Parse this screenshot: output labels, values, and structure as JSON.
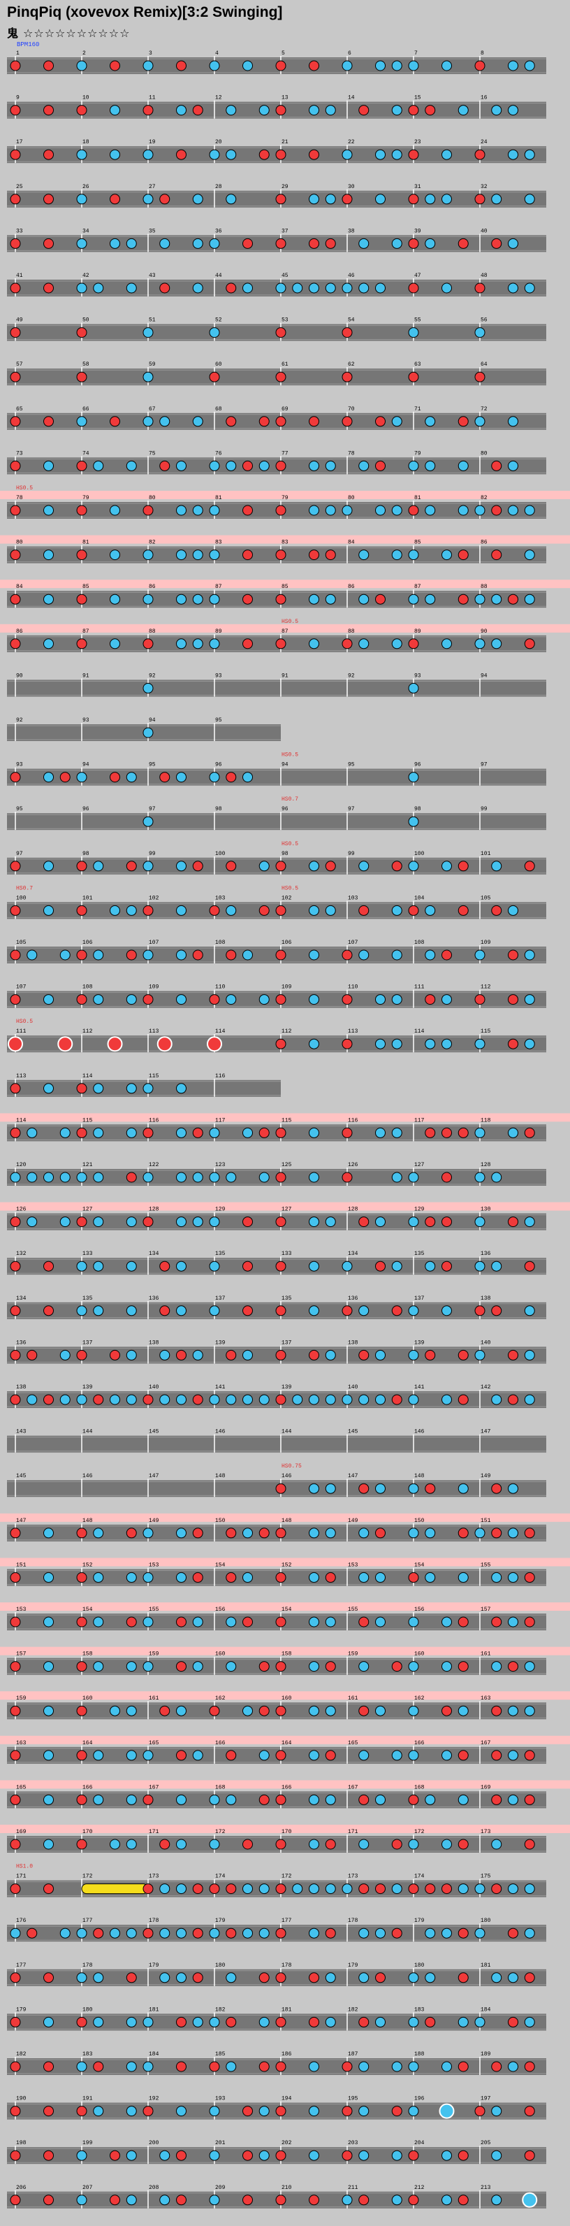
{
  "song_title": "PinqPiq (xovevox Remix)[3:2 Swinging]",
  "difficulty": {
    "label": "鬼",
    "stars": "☆☆☆☆☆☆☆☆☆☆"
  },
  "colors": {
    "don": "#f03a3a",
    "ka": "#44c2ee",
    "lane": "#767676",
    "gogo": "#ffc2c2",
    "roll": "#f5dd1c",
    "measure_line": "#ffffff",
    "text": "#000000",
    "event_text": "#e03030",
    "bpm_text": "#2040ff"
  },
  "chart_data": {
    "type": "taiko-chart-notation",
    "bpm_label": "BPM160",
    "events": [
      {
        "measure": 78,
        "label": "HS0.5"
      },
      {
        "measure": 87,
        "label": "HS0.5"
      },
      {
        "measure": 88,
        "label": "HS0.7"
      },
      {
        "measure": 94,
        "label": "HS0.5"
      },
      {
        "measure": 96,
        "label": "HS0.7"
      },
      {
        "measure": 98,
        "label": "HS0.5"
      },
      {
        "measure": 100,
        "label": "HS0.7"
      },
      {
        "measure": 102,
        "label": "HS0.5"
      },
      {
        "measure": 111,
        "label": "HS0.5"
      },
      {
        "measure": 118,
        "label": "HS0.5"
      },
      {
        "measure": 146,
        "label": "HS0.75"
      },
      {
        "measure": 171,
        "label": "HS1.0"
      }
    ],
    "rows": [
      {
        "segments": [
          {
            "m": 1,
            "n": "d.d.k.d.k.d.k.k."
          },
          {
            "m": 5,
            "n": "d.d.k.kkk.k.d.kk"
          }
        ]
      },
      {
        "segments": [
          {
            "m": 9,
            "n": "d.d.d.k.d.kd.k.k"
          },
          {
            "m": 13,
            "n": "d.kk.d.kdd.k.kk."
          }
        ]
      },
      {
        "segments": [
          {
            "m": 17,
            "n": "d.d.k.k.k.d.kk.d"
          },
          {
            "m": 21,
            "n": "d.d.k.kkd.k.d.kk"
          }
        ]
      },
      {
        "segments": [
          {
            "m": 25,
            "n": "d.d.k.d.kd.k.k.."
          },
          {
            "m": 29,
            "n": "d.kkd.k.dkk.dk.k"
          }
        ]
      },
      {
        "segments": [
          {
            "m": 33,
            "n": "d.d.k.kk.k.kk.d."
          },
          {
            "m": 37,
            "n": "d.dd.k.kdk.d.dk."
          }
        ]
      },
      {
        "segments": [
          {
            "m": 41,
            "n": "d.d.kk.k.d.k.dk."
          },
          {
            "m": 45,
            "n": "kkkkkkk.d.k.d.kk"
          }
        ]
      },
      {
        "segments": [
          {
            "m": 49,
            "n": "d...d...k...k..."
          },
          {
            "m": 53,
            "n": "d...d...k...k..."
          }
        ]
      },
      {
        "segments": [
          {
            "m": 57,
            "n": "d...d...k...d..."
          },
          {
            "m": 61,
            "n": "d...d...d...d..."
          }
        ]
      },
      {
        "segments": [
          {
            "m": 65,
            "n": "d.d.k.d.kk.k.d.d"
          },
          {
            "m": 69,
            "n": "d.d.d.dk.k.dk.k."
          }
        ]
      },
      {
        "segments": [
          {
            "m": 73,
            "n": "d.k.dk.k.dk.kkdk"
          },
          {
            "m": 77,
            "n": "d.kk.kd.kk.k.dk."
          }
        ]
      },
      {
        "segments": [
          {
            "m": 78,
            "n": "d.k.d.k.d.kkk.d."
          },
          {
            "m": 79,
            "n": "d.kkk.kkdk.kkdkk"
          }
        ]
      },
      {
        "segments": [
          {
            "m": 80,
            "n": "d.k.d.k.k.kkk.d."
          },
          {
            "m": 83,
            "n": "d.dd.k.kk.kd.d.k"
          }
        ]
      },
      {
        "segments": [
          {
            "m": 84,
            "n": "d.k.d.k.k.kkk.d."
          },
          {
            "m": 85,
            "n": "d.kk.kd.kk.dkkdk"
          }
        ]
      },
      {
        "segments": [
          {
            "m": 86,
            "n": "d.k.d.k.d.kkk.d."
          },
          {
            "m": 87,
            "n": "d.k.dk.kd.k.kk.d"
          }
        ]
      },
      {
        "segments": [
          {
            "m": 90,
            "n": "........k......."
          },
          {
            "m": 91,
            "n": "........k......."
          }
        ]
      },
      {
        "segments": [
          {
            "m": 92,
            "n": "........k......."
          }
        ],
        "half": true
      },
      {
        "segments": [
          {
            "m": 93,
            "n": "d.kdk.dk.dk.kdk."
          },
          {
            "m": 94,
            "n": "........k......."
          }
        ]
      },
      {
        "segments": [
          {
            "m": 95,
            "n": "........k......."
          },
          {
            "m": 96,
            "n": "........k......."
          }
        ]
      },
      {
        "segments": [
          {
            "m": 97,
            "n": "d.k.dk.dk.kd.d.k"
          },
          {
            "m": 98,
            "n": "d.kd.k.dk.kd.k.d"
          }
        ]
      },
      {
        "segments": [
          {
            "m": 100,
            "n": "d.k.d.kkd.k.dk.d"
          },
          {
            "m": 102,
            "n": "d.kk.d.kdk.d.dk."
          }
        ]
      },
      {
        "segments": [
          {
            "m": 105,
            "n": "dk.kdk.dk.kd.dk."
          },
          {
            "m": 106,
            "n": "d.k.dk.k.kd.k.dk"
          }
        ]
      },
      {
        "segments": [
          {
            "m": 107,
            "n": "d.k.dk.kd.k.dk.k"
          },
          {
            "m": 109,
            "n": "d.k.d.kk.dk.d.dk"
          }
        ]
      },
      {
        "segments": [
          {
            "m": 111,
            "n": "D..D..D..D..D..."
          },
          {
            "m": 112,
            "n": "d.k.d.kk.kk.k.dk"
          }
        ]
      },
      {
        "segments": [
          {
            "m": 113,
            "n": "d.k.dk.kk.k....."
          }
        ],
        "half": true
      },
      {
        "segments": [
          {
            "m": 114,
            "n": "dk.kdk.kd.kdk.kd"
          },
          {
            "m": 115,
            "n": "d.k.d.kk.dddk.kd"
          }
        ]
      },
      {
        "segments": [
          {
            "m": 120,
            "n": "kkkkkk.dk.kkkk.k"
          },
          {
            "m": 125,
            "n": "d.k.d..kk.d.kk.."
          }
        ]
      },
      {
        "segments": [
          {
            "m": 126,
            "n": "dk.kdk.kd.kkk.d."
          },
          {
            "m": 127,
            "n": "d.kk.dk.kdd.k.dk"
          }
        ]
      },
      {
        "segments": [
          {
            "m": 132,
            "n": "d.d.kk.k.dk.k.d."
          },
          {
            "m": 133,
            "n": "d.k.k.dk.kd.kk.d"
          }
        ]
      },
      {
        "segments": [
          {
            "m": 134,
            "n": "d.d.kk.k.dk.k.d."
          },
          {
            "m": 135,
            "n": "d.k.dk.dk.k.dd.k"
          }
        ]
      },
      {
        "segments": [
          {
            "m": 136,
            "n": "dd.kd.dk.kdk.dk."
          },
          {
            "m": 137,
            "n": "d.dk.dk.kd.dk.dk"
          }
        ]
      },
      {
        "segments": [
          {
            "m": 138,
            "n": "dkdkkdkkdkkdkkkk"
          },
          {
            "m": 139,
            "n": "dkkkkkkdk.kd.kdk"
          }
        ]
      },
      {
        "segments": [
          {
            "m": 143,
            "n": "................"
          },
          {
            "m": 144,
            "n": "................"
          }
        ]
      },
      {
        "segments": [
          {
            "m": 145,
            "n": "................"
          },
          {
            "m": 146,
            "n": "d.kk.dk.kd.k.dk."
          }
        ]
      },
      {
        "segments": [
          {
            "m": 147,
            "n": "d.k.dk.dk.kd.dkd"
          },
          {
            "m": 148,
            "n": "d.kk.kd.kk.dkdkd"
          }
        ]
      },
      {
        "segments": [
          {
            "m": 151,
            "n": "d.k.dk.kk.kd.dk."
          },
          {
            "m": 152,
            "n": "d.kd.kk.dk.k.kkd"
          }
        ]
      },
      {
        "segments": [
          {
            "m": 153,
            "n": "d.k.dk.dk.dk.kd."
          },
          {
            "m": 154,
            "n": "d.kk.dk.k.kd.dkd"
          }
        ]
      },
      {
        "segments": [
          {
            "m": 157,
            "n": "d.k.dk.kk.dk.k.d"
          },
          {
            "m": 158,
            "n": "d.kd.k.dk.kd.kdk"
          }
        ]
      },
      {
        "segments": [
          {
            "m": 159,
            "n": "d.k.d.kk.dk.d.kd"
          },
          {
            "m": 160,
            "n": "d.kk.dk.k.dk.dkk"
          }
        ]
      },
      {
        "segments": [
          {
            "m": 163,
            "n": "d.k.dk.kk.dk.d.k"
          },
          {
            "m": 164,
            "n": "d.kd.k.kk.kd.dkd"
          }
        ]
      },
      {
        "segments": [
          {
            "m": 165,
            "n": "d.k.dk.kd.k.kk.d"
          },
          {
            "m": 166,
            "n": "d.kk.dk.dk.k.dkd"
          }
        ]
      },
      {
        "segments": [
          {
            "m": 169,
            "n": "d.k.d.kk.dk.k.d."
          },
          {
            "m": 170,
            "n": "d.kd.k.dk.kd.k.d"
          }
        ]
      },
      {
        "segments": [
          {
            "m": 171,
            "n": "d.d.R...dkkdddkk"
          },
          {
            "m": 172,
            "n": "dkkkkddkdddkkdkk"
          }
        ]
      },
      {
        "segments": [
          {
            "m": 176,
            "n": "kd.kkdkkdkkdkdkk"
          },
          {
            "m": 177,
            "n": "d.kd.kkd.kkdk.dk"
          }
        ]
      },
      {
        "segments": [
          {
            "m": 177,
            "n": "d.d.kk.d.kkd.k.d"
          },
          {
            "m": 178,
            "n": "d.dk.kd.kk.d.kkd"
          }
        ]
      },
      {
        "segments": [
          {
            "m": 179,
            "n": "d.k.dk.kk.dkkd.k"
          },
          {
            "m": 181,
            "n": "d.dk.dk.kd.kk.dk"
          }
        ]
      },
      {
        "segments": [
          {
            "m": 182,
            "n": "d.d.kd.kk.d.dk.d"
          },
          {
            "m": 186,
            "n": "d.k.dk.kk.kd.dkd"
          }
        ]
      },
      {
        "segments": [
          {
            "m": 190,
            "n": "d.d.dk.kd.k.k.dk"
          },
          {
            "m": 194,
            "n": "d.k.dk.dk.K.dk.d"
          }
        ]
      },
      {
        "segments": [
          {
            "m": 198,
            "n": "d.d.k.dk.kd.k.dk"
          },
          {
            "m": 202,
            "n": "d.k.dk.kd.kd.k.d"
          }
        ]
      },
      {
        "segments": [
          {
            "m": 206,
            "n": "d.d.k.dk.kd.k.d."
          },
          {
            "m": 210,
            "n": "d.d.kd.kd.kd.k.K"
          }
        ]
      }
    ]
  }
}
